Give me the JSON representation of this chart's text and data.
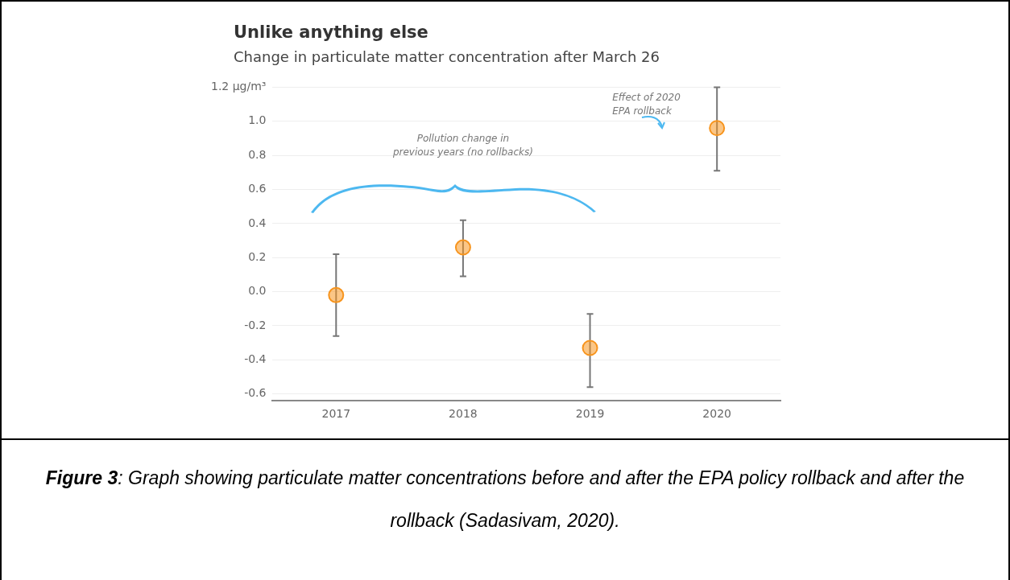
{
  "chart_data": {
    "type": "scatter",
    "title": "Unlike anything else",
    "subtitle": "Change in particulate matter concentration after March 26",
    "categories": [
      "2017",
      "2018",
      "2019",
      "2020"
    ],
    "series": [
      {
        "color": "#f7941d",
        "values": [
          -0.02,
          0.26,
          -0.33,
          0.96
        ],
        "errors": [
          [
            -0.26,
            0.22
          ],
          [
            0.09,
            0.42
          ],
          [
            -0.56,
            -0.13
          ],
          [
            0.71,
            1.2
          ]
        ]
      }
    ],
    "ylim": [
      -0.64,
      1.2
    ],
    "yticks": [
      -0.6,
      -0.4,
      -0.2,
      {
        "value": 0,
        "label": "0.0"
      },
      0.2,
      0.4,
      0.6,
      0.8,
      {
        "value": 1,
        "label": "1.0"
      },
      {
        "value": 1.2,
        "label": "1.2 µg/m³"
      }
    ],
    "grid": "y",
    "marker": "circle",
    "annotations": [
      "Pollution change in\nprevious years (no rollbacks)",
      "Effect of 2020\nEPA rollback",
      "Figure 3: Graph showing particulate matter concentrations before and after the EPA policy rollback and after the rollback (Sadasivam, 2020)."
    ]
  }
}
